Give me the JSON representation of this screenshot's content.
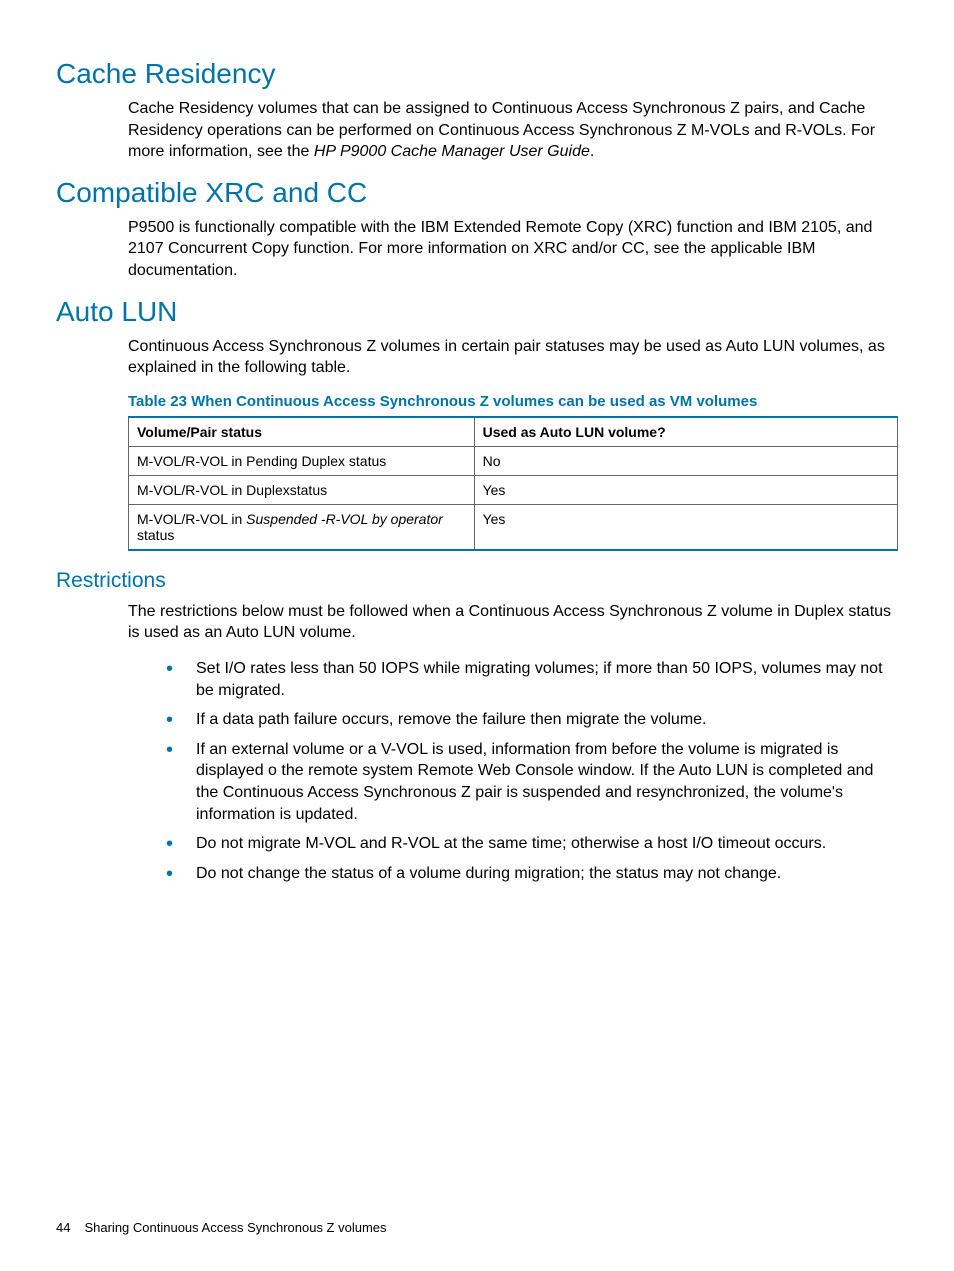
{
  "sections": {
    "cache_residency": {
      "title": "Cache Residency",
      "body_pre": "Cache Residency volumes that can be assigned to Continuous Access Synchronous Z pairs, and Cache Residency operations can be performed on Continuous Access Synchronous Z M-VOLs and R-VOLs. For more information, see the ",
      "body_italic": "HP P9000 Cache Manager User Guide",
      "body_post": "."
    },
    "compatible_xrc": {
      "title": "Compatible XRC and CC",
      "body": "P9500 is functionally compatible with the IBM Extended Remote Copy (XRC) function and IBM 2105, and 2107 Concurrent Copy function. For more information on XRC and/or CC, see the applicable IBM documentation."
    },
    "auto_lun": {
      "title": "Auto LUN",
      "body": "Continuous Access Synchronous Z volumes in certain pair statuses may be used as Auto LUN volumes, as explained in the following table."
    },
    "restrictions": {
      "title": "Restrictions",
      "body": "The restrictions below must be followed when a Continuous Access Synchronous Z volume in Duplex status is used as an Auto LUN volume.",
      "bullets": [
        "Set I/O rates less than 50 IOPS while migrating volumes; if more than 50 IOPS, volumes may not be migrated.",
        "If a data path failure occurs, remove the failure then migrate the volume.",
        "If an external volume or a V-VOL is used, information from before the volume is migrated is displayed o the remote system Remote Web Console window. If the Auto LUN is completed and the Continuous Access Synchronous Z pair is suspended and resynchronized, the volume's information is updated.",
        "Do not migrate M-VOL and R-VOL at the same time; otherwise a host I/O timeout occurs.",
        "Do not change the status of a volume during migration; the status may not change."
      ]
    }
  },
  "table": {
    "caption": "Table 23 When Continuous Access Synchronous Z volumes can be used as VM volumes",
    "columns": [
      "Volume/Pair status",
      "Used as Auto LUN volume?"
    ],
    "col_widths": [
      "346px",
      "424px"
    ],
    "rows": [
      {
        "c0": "M-VOL/R-VOL in Pending Duplex status",
        "c1": "No"
      },
      {
        "c0": "M-VOL/R-VOL in Duplexstatus",
        "c1": "Yes"
      },
      {
        "c0_pre": "M-VOL/R-VOL in ",
        "c0_italic": "Suspended -R-VOL by operator",
        "c0_post": " status",
        "c1": "Yes"
      }
    ],
    "accent_color": "#0073a8",
    "border_color": "#666666"
  },
  "footer": {
    "page_number": "44",
    "chapter": "Sharing Continuous Access Synchronous Z volumes"
  }
}
